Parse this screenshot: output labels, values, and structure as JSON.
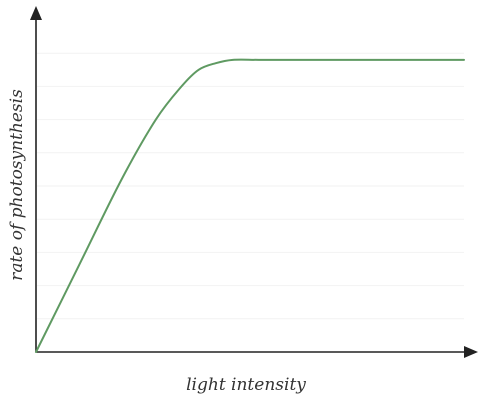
{
  "chart_data": {
    "type": "line",
    "title": "",
    "xlabel": "light intensity",
    "ylabel": "rate of photosynthesis",
    "xlim": [
      0,
      100
    ],
    "ylim": [
      0,
      100
    ],
    "grid": false,
    "legend": "none",
    "series": [
      {
        "color": "#5f9a62",
        "x": [
          0,
          10,
          20,
          28,
          34,
          38,
          42,
          46,
          52,
          60,
          70,
          80,
          90,
          100
        ],
        "y": [
          0,
          26,
          52,
          70,
          80,
          85,
          87,
          88,
          88,
          88,
          88,
          88,
          88,
          88
        ]
      }
    ]
  }
}
